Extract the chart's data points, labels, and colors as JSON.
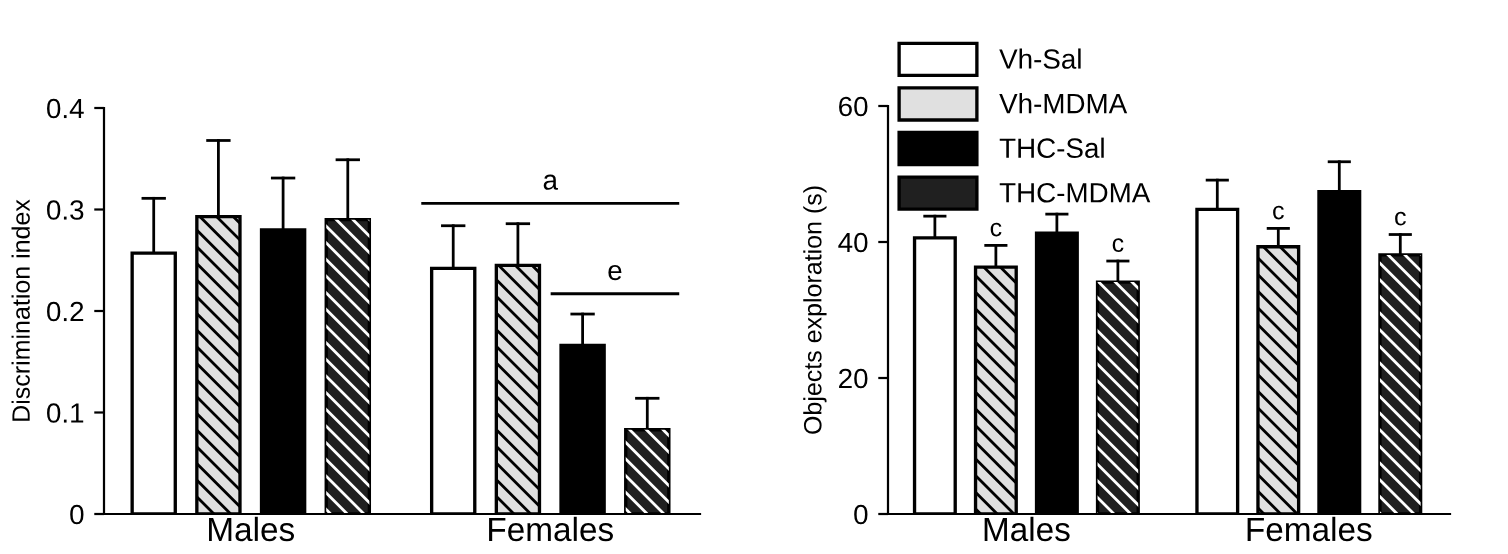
{
  "chart_data": [
    {
      "type": "bar",
      "ylabel": "Discrimination index",
      "categories": [
        "Males",
        "Females"
      ],
      "ylim": [
        0,
        0.4
      ],
      "yticks": [
        0,
        0.1,
        0.2,
        0.3,
        0.4
      ],
      "grid": false,
      "series": [
        {
          "color": "#ffffff",
          "values": [
            0.257,
            0.242
          ],
          "errors": [
            [
              0.257,
              0.311
            ],
            [
              0.242,
              0.284
            ]
          ]
        },
        {
          "color": "#e0e0e0",
          "values": [
            0.293,
            0.245
          ],
          "errors": [
            [
              0.293,
              0.368
            ],
            [
              0.245,
              0.286
            ]
          ]
        },
        {
          "color": "#000000",
          "values": [
            0.28,
            0.166
          ],
          "errors": [
            [
              0.28,
              0.331
            ],
            [
              0.166,
              0.197
            ]
          ]
        },
        {
          "color": "#202020",
          "values": [
            0.29,
            0.083
          ],
          "errors": [
            [
              0.29,
              0.349
            ],
            [
              0.083,
              0.114
            ]
          ]
        }
      ],
      "annotations": [
        "a",
        "e"
      ]
    },
    {
      "type": "bar",
      "ylabel": "Objects exploration (s)",
      "categories": [
        "Males",
        "Females"
      ],
      "ylim": [
        0,
        60
      ],
      "yticks": [
        0,
        20,
        40,
        60
      ],
      "grid": false,
      "legend": "top left",
      "series": [
        {
          "name": "Vh-Sal",
          "color": "#ffffff",
          "values": [
            40.6,
            44.8
          ],
          "errors": [
            [
              40.6,
              43.8
            ],
            [
              44.8,
              49.1
            ]
          ]
        },
        {
          "name": "Vh-MDMA",
          "color": "#e0e0e0",
          "values": [
            36.3,
            39.3
          ],
          "errors": [
            [
              36.3,
              39.5
            ],
            [
              39.3,
              42.0
            ]
          ]
        },
        {
          "name": "THC-Sal",
          "color": "#000000",
          "values": [
            41.3,
            47.4
          ],
          "errors": [
            [
              41.3,
              44.1
            ],
            [
              47.4,
              51.8
            ]
          ]
        },
        {
          "name": "THC-MDMA",
          "color": "#202020",
          "values": [
            34.1,
            38.1
          ],
          "errors": [
            [
              34.1,
              37.2
            ],
            [
              38.1,
              41.1
            ]
          ]
        }
      ],
      "annotations": [
        "c",
        "c",
        "c",
        "c"
      ]
    }
  ]
}
